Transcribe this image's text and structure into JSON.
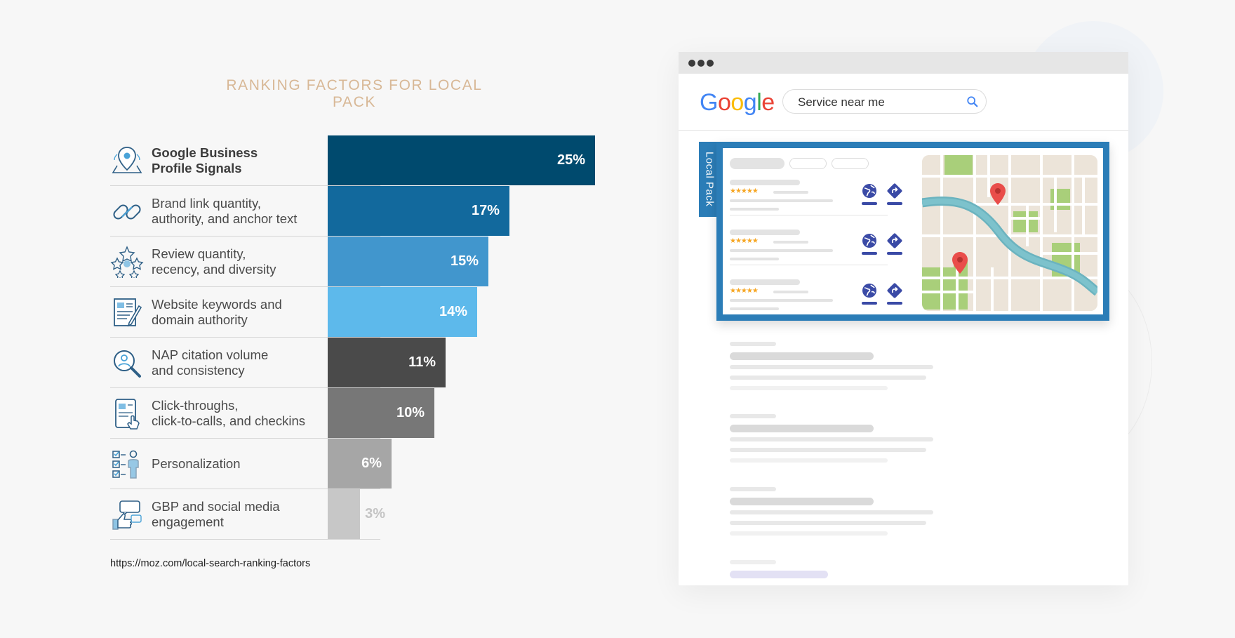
{
  "title": "RANKING FACTORS FOR LOCAL PACK",
  "source": "https://moz.com/local-search-ranking-factors",
  "colors": {
    "bars": [
      "#004a6e",
      "#12699d",
      "#4196cd",
      "#5db9eb",
      "#4a4a4a",
      "#777777",
      "#a6a6a6",
      "#c7c7c7"
    ],
    "title": "#d8b896",
    "local_pack": "#2b7db7"
  },
  "chart_data": {
    "type": "bar",
    "orientation": "horizontal",
    "categories": [
      "Google Business Profile Signals",
      "Brand link quantity, authority, and anchor text",
      "Review quantity, recency, and diversity",
      "Website keywords and domain authority",
      "NAP citation volume and consistency",
      "Click-throughs, click-to-calls, and checkins",
      "Personalization",
      "GBP and social media engagement"
    ],
    "values": [
      25,
      17,
      15,
      14,
      11,
      10,
      6,
      3
    ],
    "value_labels": [
      "25%",
      "17%",
      "15%",
      "14%",
      "11%",
      "10%",
      "6%",
      "3%"
    ],
    "title": "RANKING FACTORS FOR LOCAL PACK",
    "xlabel": "",
    "ylabel": "",
    "xlim": [
      0,
      25
    ],
    "grid": false,
    "legend": "none"
  },
  "rows": [
    {
      "label_lines": [
        "Google Business",
        "Profile Signals"
      ],
      "icon": "location-pin-map-icon"
    },
    {
      "label_lines": [
        "Brand link quantity,",
        "authority, and anchor text"
      ],
      "icon": "chain-link-icon"
    },
    {
      "label_lines": [
        "Review quantity,",
        "recency, and diversity"
      ],
      "icon": "stars-review-icon"
    },
    {
      "label_lines": [
        "Website keywords and",
        "domain authority"
      ],
      "icon": "document-edit-icon"
    },
    {
      "label_lines": [
        "NAP citation volume",
        "and consistency"
      ],
      "icon": "magnifier-person-icon"
    },
    {
      "label_lines": [
        "Click-throughs,",
        "click-to-calls, and checkins"
      ],
      "icon": "tablet-tap-icon"
    },
    {
      "label_lines": [
        "Personalization"
      ],
      "icon": "checklist-person-icon"
    },
    {
      "label_lines": [
        "GBP and social media",
        "engagement"
      ],
      "icon": "thumbs-up-chat-icon"
    }
  ],
  "browser": {
    "logo_letters": [
      {
        "ch": "G",
        "color": "#4285F4"
      },
      {
        "ch": "o",
        "color": "#EA4335"
      },
      {
        "ch": "o",
        "color": "#FBBC05"
      },
      {
        "ch": "g",
        "color": "#4285F4"
      },
      {
        "ch": "l",
        "color": "#34A853"
      },
      {
        "ch": "e",
        "color": "#EA4335"
      }
    ],
    "search_value": "Service near me",
    "local_pack_label": "Local Pack",
    "result_stars": "★★★★★"
  }
}
